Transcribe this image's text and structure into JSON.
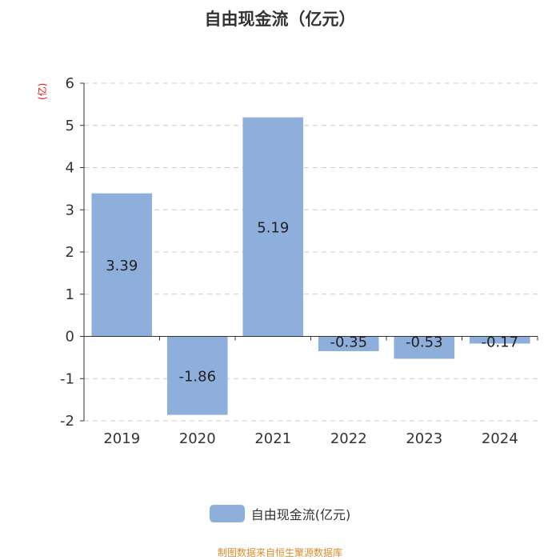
{
  "title": "自由现金流（亿元）",
  "unit_label": "(亿)",
  "source": "制图数据来自恒生聚源数据库",
  "colors": {
    "bar": "#8eaedb",
    "axis": "#333333",
    "grid": "#cccccc",
    "unit": "#ee1111",
    "source": "#d98a2b"
  },
  "chart_data": {
    "type": "bar",
    "categories": [
      "2019",
      "2020",
      "2021",
      "2022",
      "2023",
      "2024"
    ],
    "series": [
      {
        "name": "自由现金流(亿元)",
        "values": [
          3.39,
          -1.86,
          5.19,
          -0.35,
          -0.53,
          -0.17
        ]
      }
    ],
    "data_labels": [
      "3.39",
      "-1.86",
      "5.19",
      "-0.35",
      "-0.53",
      "-0.17"
    ],
    "yticks": [
      6,
      5,
      4,
      3,
      2,
      1,
      0,
      -1,
      -2
    ],
    "ylim": [
      -2,
      6
    ],
    "grid": true,
    "legend": "bottom-center"
  }
}
